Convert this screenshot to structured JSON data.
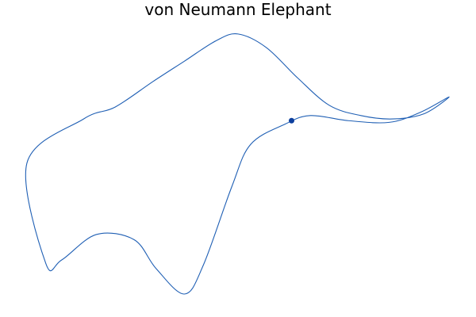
{
  "chart_data": {
    "type": "line",
    "title": "von Neumann Elephant",
    "xlabel": "",
    "ylabel": "",
    "grid": false,
    "axes_visible": false,
    "legend": "none",
    "series": [
      {
        "kind": "closed-curve",
        "color": "#1f5fb4",
        "points": [
          [
            -58,
            -45
          ],
          [
            -64,
            14
          ],
          [
            -46,
            40
          ],
          [
            -36,
            47
          ],
          [
            -24,
            62
          ],
          [
            -14,
            74
          ],
          [
            -4,
            86
          ],
          [
            3,
            90
          ],
          [
            12,
            82
          ],
          [
            22,
            64
          ],
          [
            32,
            48
          ],
          [
            42,
            42
          ],
          [
            52,
            40
          ],
          [
            62,
            43
          ],
          [
            70,
            53
          ],
          [
            61,
            44
          ],
          [
            51,
            38
          ],
          [
            38,
            39
          ],
          [
            26,
            42
          ],
          [
            18,
            37
          ],
          [
            7,
            25
          ],
          [
            1,
            0
          ],
          [
            -8,
            -46
          ],
          [
            -14,
            -63
          ],
          [
            -23,
            -48
          ],
          [
            -30,
            -31
          ],
          [
            -42,
            -28
          ],
          [
            -53,
            -43
          ],
          [
            -58,
            -45
          ]
        ]
      }
    ],
    "markers": [
      {
        "name": "eye",
        "x": 20,
        "y": 39,
        "color": "#0d3f9e"
      }
    ],
    "xlim": [
      -67,
      73
    ],
    "ylim": [
      -70,
      96
    ]
  }
}
